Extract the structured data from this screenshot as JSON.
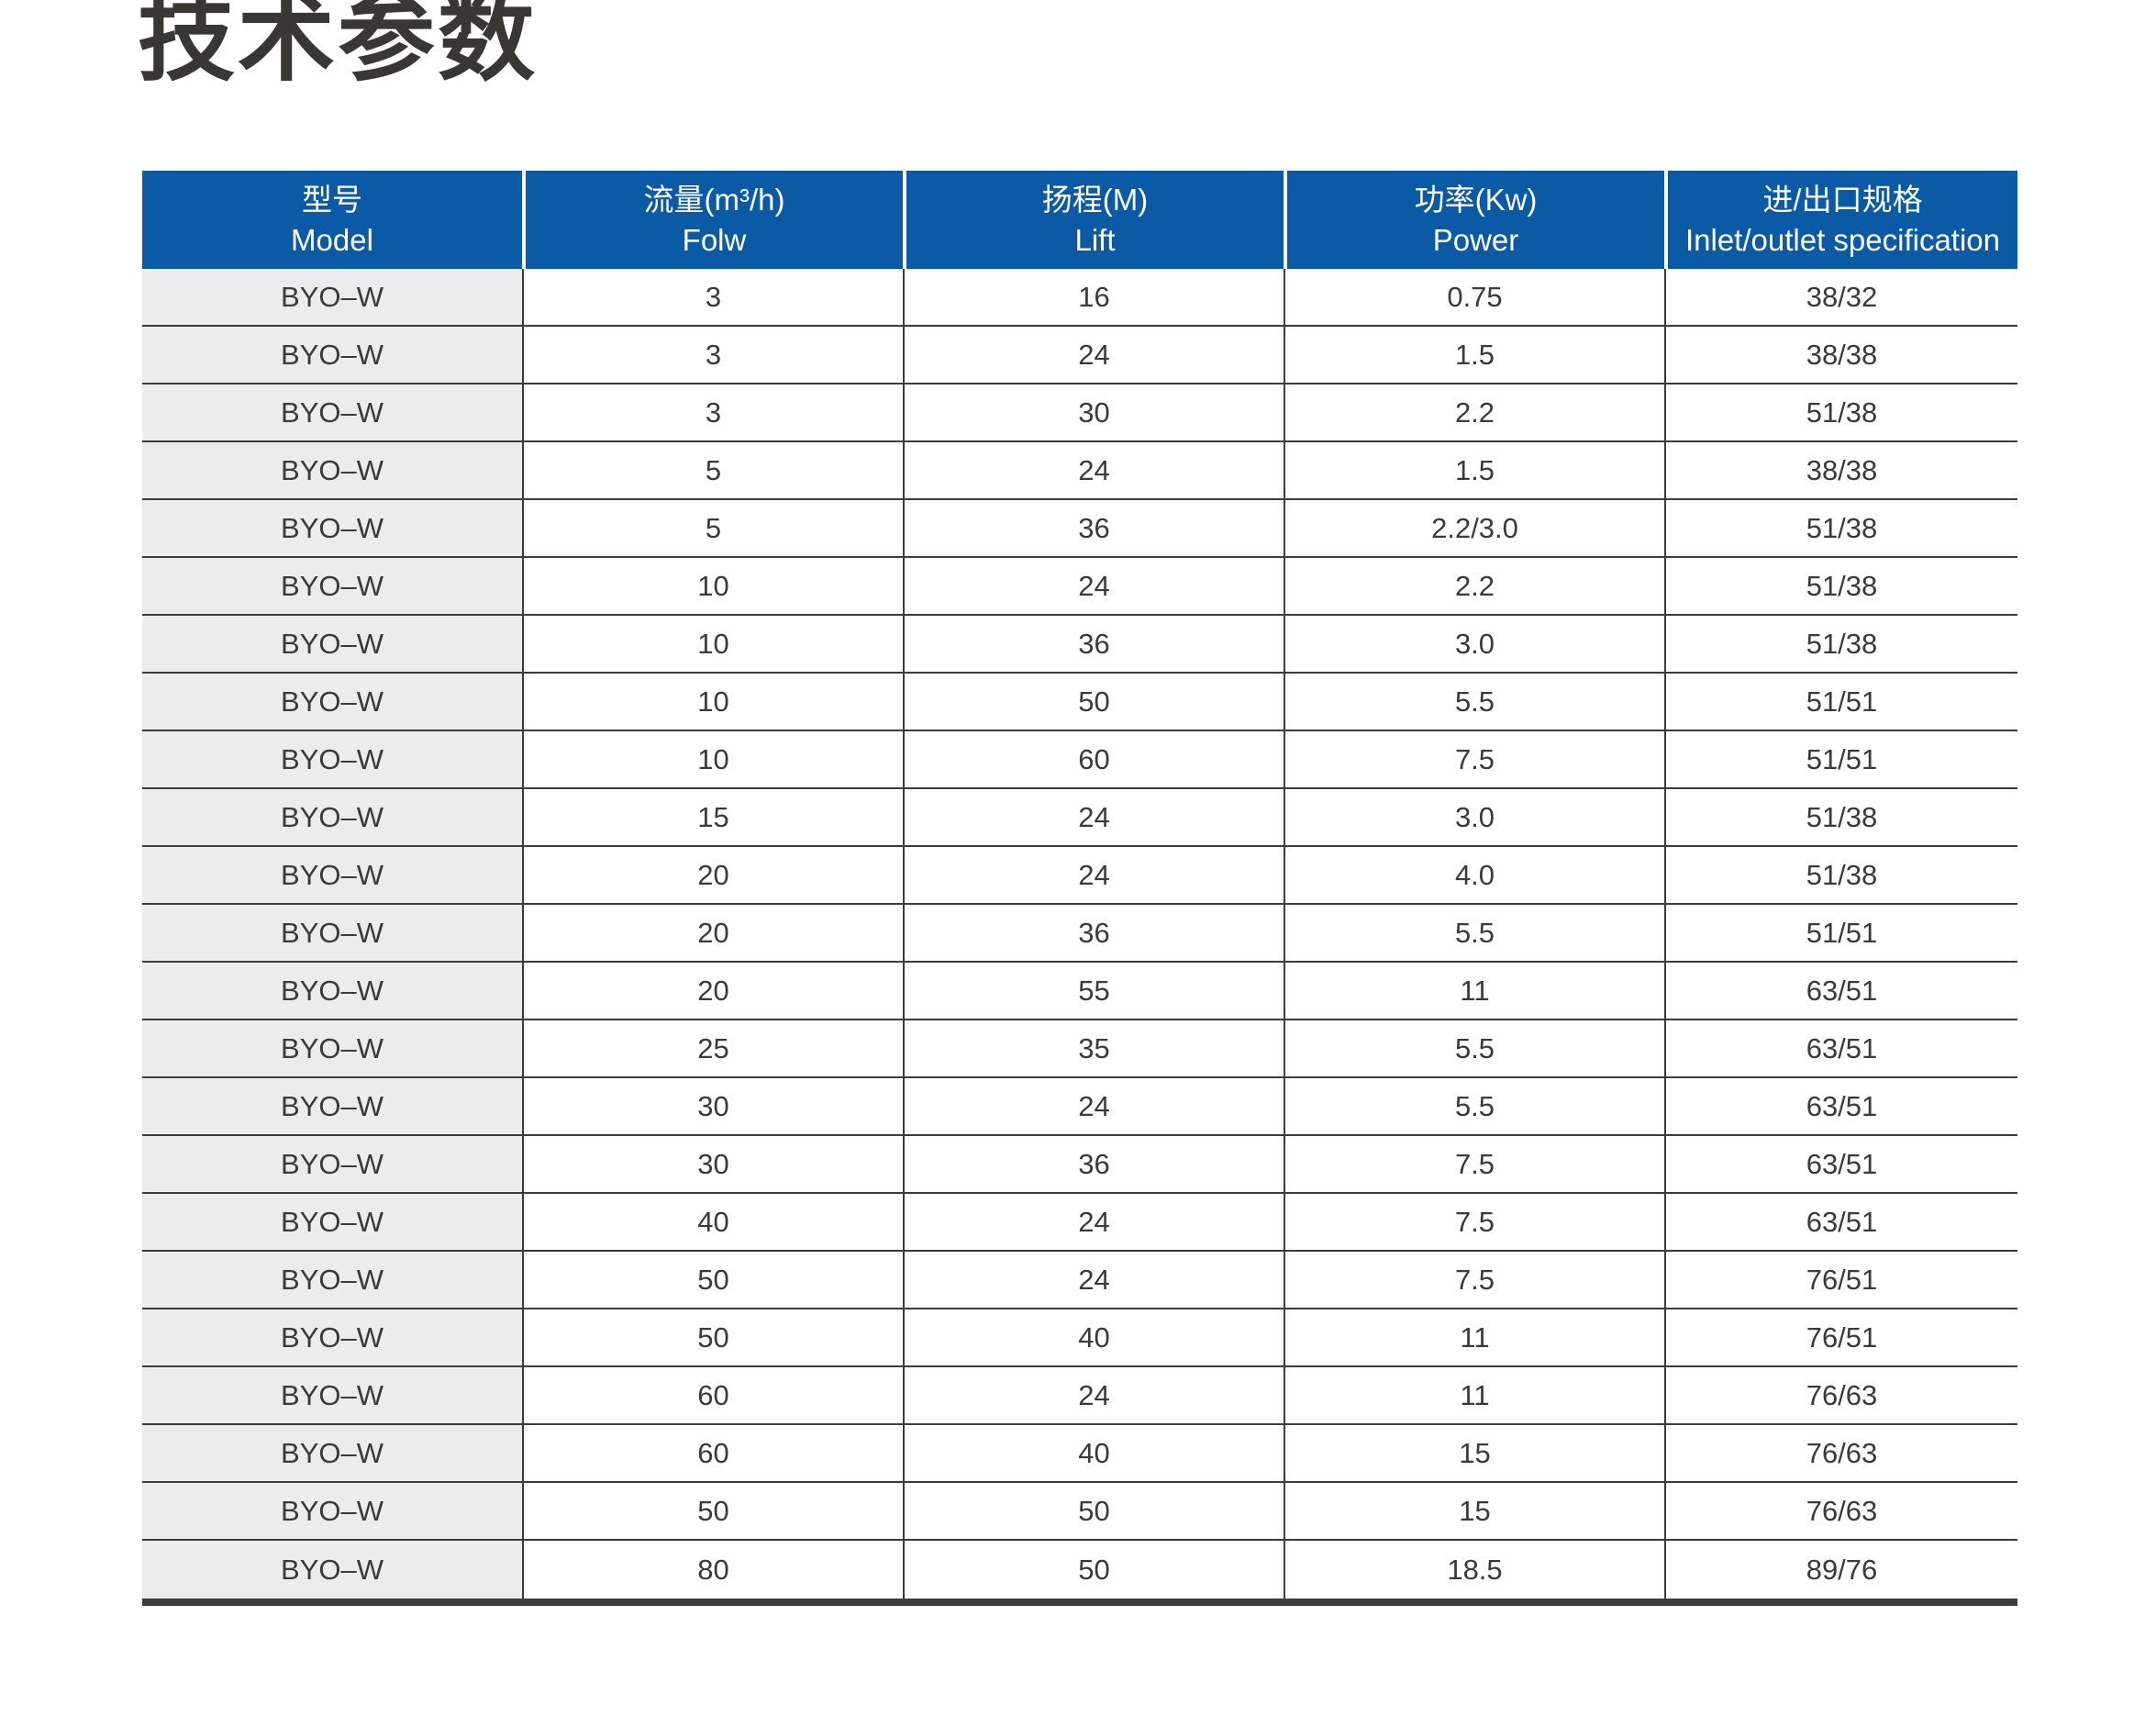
{
  "page": {
    "title": "技术参数"
  },
  "colors": {
    "header_bg": "#0a5aa6",
    "model_col_bg": "#ececec",
    "border": "#3b3b3b",
    "body_text": "#3a3a3a",
    "header_text": "#ffffff"
  },
  "table": {
    "columns": [
      {
        "zh": "型号",
        "en": "Model"
      },
      {
        "zh": "流量(m³/h)",
        "en": "Folw"
      },
      {
        "zh": "扬程(M)",
        "en": "Lift"
      },
      {
        "zh": "功率(Kw)",
        "en": "Power"
      },
      {
        "zh": "进/出口规格",
        "en": "Inlet/outlet specification"
      }
    ],
    "rows": [
      [
        "BYO–W",
        "3",
        "16",
        "0.75",
        "38/32"
      ],
      [
        "BYO–W",
        "3",
        "24",
        "1.5",
        "38/38"
      ],
      [
        "BYO–W",
        "3",
        "30",
        "2.2",
        "51/38"
      ],
      [
        "BYO–W",
        "5",
        "24",
        "1.5",
        "38/38"
      ],
      [
        "BYO–W",
        "5",
        "36",
        "2.2/3.0",
        "51/38"
      ],
      [
        "BYO–W",
        "10",
        "24",
        "2.2",
        "51/38"
      ],
      [
        "BYO–W",
        "10",
        "36",
        "3.0",
        "51/38"
      ],
      [
        "BYO–W",
        "10",
        "50",
        "5.5",
        "51/51"
      ],
      [
        "BYO–W",
        "10",
        "60",
        "7.5",
        "51/51"
      ],
      [
        "BYO–W",
        "15",
        "24",
        "3.0",
        "51/38"
      ],
      [
        "BYO–W",
        "20",
        "24",
        "4.0",
        "51/38"
      ],
      [
        "BYO–W",
        "20",
        "36",
        "5.5",
        "51/51"
      ],
      [
        "BYO–W",
        "20",
        "55",
        "11",
        "63/51"
      ],
      [
        "BYO–W",
        "25",
        "35",
        "5.5",
        "63/51"
      ],
      [
        "BYO–W",
        "30",
        "24",
        "5.5",
        "63/51"
      ],
      [
        "BYO–W",
        "30",
        "36",
        "7.5",
        "63/51"
      ],
      [
        "BYO–W",
        "40",
        "24",
        "7.5",
        "63/51"
      ],
      [
        "BYO–W",
        "50",
        "24",
        "7.5",
        "76/51"
      ],
      [
        "BYO–W",
        "50",
        "40",
        "11",
        "76/51"
      ],
      [
        "BYO–W",
        "60",
        "24",
        "11",
        "76/63"
      ],
      [
        "BYO–W",
        "60",
        "40",
        "15",
        "76/63"
      ],
      [
        "BYO–W",
        "50",
        "50",
        "15",
        "76/63"
      ],
      [
        "BYO–W",
        "80",
        "50",
        "18.5",
        "89/76"
      ]
    ]
  }
}
